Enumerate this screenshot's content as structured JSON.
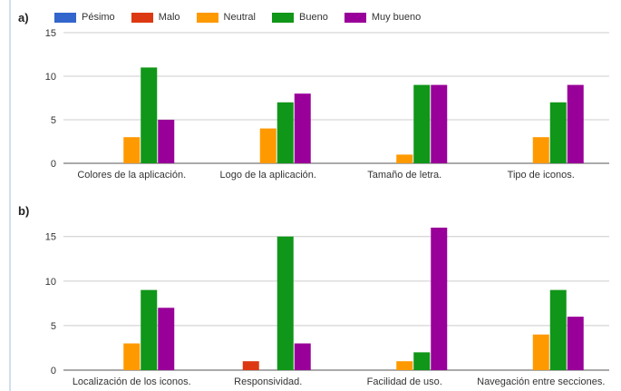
{
  "panels": {
    "a": "a)",
    "b": "b)"
  },
  "chart_data": [
    {
      "type": "bar",
      "categories": [
        "Colores de la aplicación.",
        "Logo de la aplicación.",
        "Tamaño de letra.",
        "Tipo de iconos."
      ],
      "series": [
        {
          "name": "Pésimo",
          "color": "#3366cc",
          "values": [
            0,
            0,
            0,
            0
          ]
        },
        {
          "name": "Malo",
          "color": "#dc3912",
          "values": [
            0,
            0,
            0,
            0
          ]
        },
        {
          "name": "Neutral",
          "color": "#ff9900",
          "values": [
            3,
            4,
            1,
            3
          ]
        },
        {
          "name": "Bueno",
          "color": "#109618",
          "values": [
            11,
            7,
            9,
            7
          ]
        },
        {
          "name": "Muy bueno",
          "color": "#990099",
          "values": [
            5,
            8,
            9,
            9
          ]
        }
      ],
      "yticks": [
        0,
        5,
        10,
        15
      ],
      "ylim": [
        0,
        15
      ],
      "legend": "top"
    },
    {
      "type": "bar",
      "categories": [
        "Localización de los iconos.",
        "Responsividad.",
        "Facilidad de uso.",
        "Navegación entre secciones."
      ],
      "series": [
        {
          "name": "Pésimo",
          "color": "#3366cc",
          "values": [
            0,
            0,
            0,
            0
          ]
        },
        {
          "name": "Malo",
          "color": "#dc3912",
          "values": [
            0,
            1,
            0,
            0
          ]
        },
        {
          "name": "Neutral",
          "color": "#ff9900",
          "values": [
            3,
            0,
            1,
            4
          ]
        },
        {
          "name": "Bueno",
          "color": "#109618",
          "values": [
            9,
            15,
            2,
            9
          ]
        },
        {
          "name": "Muy bueno",
          "color": "#990099",
          "values": [
            7,
            3,
            16,
            6
          ]
        }
      ],
      "yticks": [
        0,
        5,
        10,
        15
      ],
      "ylim": [
        0,
        16.5
      ]
    }
  ]
}
